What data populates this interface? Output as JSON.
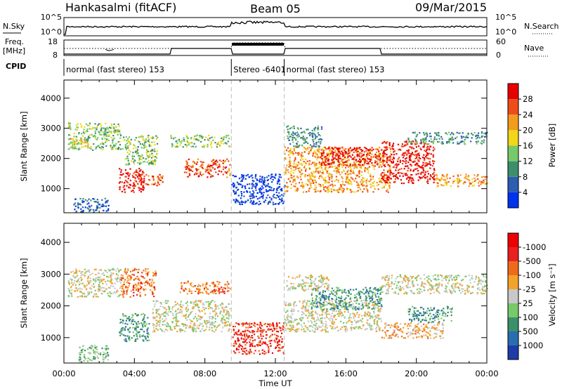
{
  "header": {
    "station": "Hankasalmi (fitACF)",
    "beam": "Beam 05",
    "date": "09/Mar/2015"
  },
  "top_panels": {
    "nsky_label": "N.Sky",
    "nsky_ticks": [
      "10^5",
      "10^0"
    ],
    "nsearch_label": "N.Search",
    "nsearch_ticks": [
      "10^5",
      "10^0"
    ],
    "freq_label_line1": "Freq.",
    "freq_label_line2": "[MHz]",
    "freq_ticks": [
      "18",
      "8"
    ],
    "nave_label": "Nave",
    "nave_ticks": [
      "60",
      "0"
    ],
    "cpid_label": "CPID",
    "modes": [
      {
        "label": "normal (fast stereo) 153",
        "start_h": 0,
        "end_h": 9.5
      },
      {
        "label": "Stereo -6401",
        "start_h": 9.5,
        "end_h": 12.5
      },
      {
        "label": "normal (fast stereo) 153",
        "start_h": 12.5,
        "end_h": 24
      }
    ]
  },
  "chart_data": [
    {
      "type": "heatmap",
      "quantity": "Power",
      "ylabel": "Slant Range [km]",
      "xlabel": "",
      "xlim": [
        0,
        24
      ],
      "ylim": [
        200,
        4600
      ],
      "yticks": [
        1000,
        2000,
        3000,
        4000
      ],
      "colorbar_label": "Power [dB]",
      "colorbar_ticks": [
        "4",
        "8",
        "12",
        "16",
        "20",
        "24",
        "28"
      ],
      "colorbar_colors": [
        "#0033ee",
        "#2d5cb3",
        "#3c8f6b",
        "#77c96a",
        "#f2d619",
        "#f39b1e",
        "#ef4c1c",
        "#e80000"
      ],
      "regions": [
        {
          "t": [
            0.2,
            3.2
          ],
          "r": [
            2300,
            3200
          ],
          "level": 3
        },
        {
          "t": [
            0.3,
            1.5
          ],
          "r": [
            2400,
            2700
          ],
          "level": 4
        },
        {
          "t": [
            3.1,
            4.5
          ],
          "r": [
            900,
            1700
          ],
          "level": 7
        },
        {
          "t": [
            4.0,
            5.6
          ],
          "r": [
            1100,
            1500
          ],
          "level": 6
        },
        {
          "t": [
            3.3,
            5.3
          ],
          "r": [
            1800,
            2800
          ],
          "level": 3
        },
        {
          "t": [
            6.8,
            9.4
          ],
          "r": [
            1400,
            2000
          ],
          "level": 6
        },
        {
          "t": [
            6.0,
            9.4
          ],
          "r": [
            2400,
            2800
          ],
          "level": 3
        },
        {
          "t": [
            9.5,
            12.5
          ],
          "r": [
            500,
            1500
          ],
          "level": 0
        },
        {
          "t": [
            12.5,
            18.5
          ],
          "r": [
            900,
            2400
          ],
          "level": 5
        },
        {
          "t": [
            14.5,
            18.0
          ],
          "r": [
            1800,
            2400
          ],
          "level": 7
        },
        {
          "t": [
            12.6,
            14.6
          ],
          "r": [
            2400,
            3100
          ],
          "level": 2
        },
        {
          "t": [
            18.0,
            21.0
          ],
          "r": [
            1200,
            2600
          ],
          "level": 7
        },
        {
          "t": [
            21.0,
            24.0
          ],
          "r": [
            1100,
            1500
          ],
          "level": 5
        },
        {
          "t": [
            19.5,
            24.0
          ],
          "r": [
            2500,
            2900
          ],
          "level": 2
        },
        {
          "t": [
            0.5,
            2.5
          ],
          "r": [
            250,
            700
          ],
          "level": 1
        }
      ]
    },
    {
      "type": "heatmap",
      "quantity": "Velocity",
      "ylabel": "Slant Range [km]",
      "xlabel": "Time UT",
      "xlim": [
        0,
        24
      ],
      "ylim": [
        200,
        4600
      ],
      "yticks": [
        1000,
        2000,
        3000,
        4000
      ],
      "xticks": [
        "00:00",
        "04:00",
        "08:00",
        "12:00",
        "16:00",
        "20:00",
        "00:00"
      ],
      "colorbar_label": "Velocity [m s⁻¹]",
      "colorbar_ticks": [
        "1000",
        "500",
        "100",
        "25",
        "-25",
        "-100",
        "-500",
        "-1000"
      ],
      "colorbar_colors": [
        "#1d3ca8",
        "#2a6db0",
        "#3c8f6b",
        "#77c96a",
        "#c8c8c8",
        "#f3a32a",
        "#ef6b1c",
        "#e82020",
        "#ee0000"
      ],
      "regions": [
        {
          "t": [
            0.2,
            3.2
          ],
          "r": [
            2300,
            3200
          ],
          "level": 4
        },
        {
          "t": [
            3.1,
            4.8
          ],
          "r": [
            900,
            1800
          ],
          "level": 2
        },
        {
          "t": [
            3.2,
            5.2
          ],
          "r": [
            2300,
            3200
          ],
          "level": 6
        },
        {
          "t": [
            5.0,
            9.4
          ],
          "r": [
            1200,
            2200
          ],
          "level": 4
        },
        {
          "t": [
            6.5,
            9.4
          ],
          "r": [
            2400,
            2800
          ],
          "level": 6
        },
        {
          "t": [
            9.5,
            12.5
          ],
          "r": [
            500,
            1500
          ],
          "level": 7
        },
        {
          "t": [
            12.5,
            18.0
          ],
          "r": [
            1200,
            2200
          ],
          "level": 4
        },
        {
          "t": [
            14.0,
            18.0
          ],
          "r": [
            1900,
            2600
          ],
          "level": 2
        },
        {
          "t": [
            12.6,
            15.0
          ],
          "r": [
            2500,
            3000
          ],
          "level": 4
        },
        {
          "t": [
            18.0,
            21.5
          ],
          "r": [
            1000,
            1500
          ],
          "level": 5
        },
        {
          "t": [
            19.5,
            22.0
          ],
          "r": [
            1500,
            2000
          ],
          "level": 2
        },
        {
          "t": [
            18.0,
            24.0
          ],
          "r": [
            2400,
            3000
          ],
          "level": 4
        },
        {
          "t": [
            0.8,
            2.5
          ],
          "r": [
            250,
            800
          ],
          "level": 3
        }
      ]
    }
  ]
}
